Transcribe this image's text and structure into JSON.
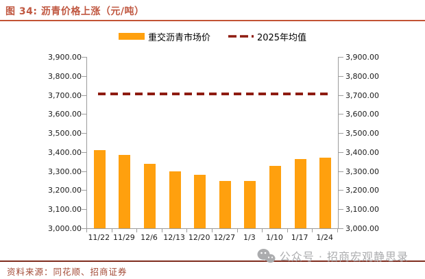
{
  "title": {
    "text": "图 34: 沥青价格上涨（元/吨）"
  },
  "colors": {
    "title": "#c05740",
    "title_rule": "#c25334",
    "bar": "#ffa00e",
    "mean_line": "#8e1b10",
    "axis": "#9b9b9b",
    "footer_rule": "#7e2b1d",
    "source_text": "#a34a36",
    "watermark": "#abacae"
  },
  "chart_data": {
    "type": "bar",
    "title": "沥青价格上涨（元/吨）",
    "categories": [
      "11/22",
      "11/29",
      "12/6",
      "12/13",
      "12/20",
      "12/27",
      "1/3",
      "1/10",
      "1/17",
      "1/24"
    ],
    "series": [
      {
        "name": "重交沥青市场价",
        "type": "bar",
        "color": "#ffa00e",
        "values": [
          3410,
          3386,
          3340,
          3298,
          3280,
          3250,
          3250,
          3328,
          3363,
          3372
        ]
      },
      {
        "name": "2025年均值",
        "type": "dashed-line",
        "color": "#8e1b10",
        "value": 3705
      }
    ],
    "ylim": [
      3000,
      3900
    ],
    "ytick_step": 100,
    "ytick_labels": [
      "3,900.00",
      "3,800.00",
      "3,700.00",
      "3,600.00",
      "3,500.00",
      "3,400.00",
      "3,300.00",
      "3,200.00",
      "3,100.00",
      "3,000.00"
    ],
    "dual_axis": true,
    "grid": false,
    "legend_position": "top-center"
  },
  "footer": {
    "source": "资料来源：同花顺、招商证券",
    "watermark": "公众号 · 招商宏观静思录",
    "watermark_icon": "wechat-icon"
  }
}
